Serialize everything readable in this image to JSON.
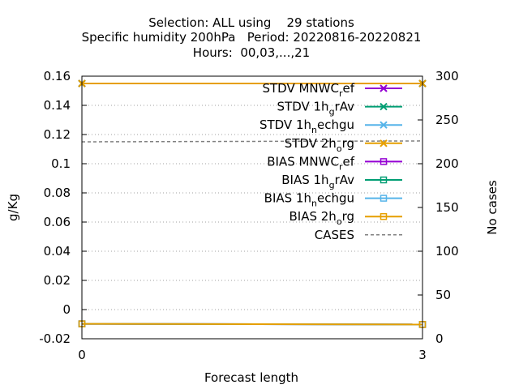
{
  "chart_data": {
    "type": "line",
    "title_lines": [
      "Selection: ALL using    29 stations",
      "Specific humidity 200hPa   Period: 20220816-20220821",
      "Hours:  00,03,...,21"
    ],
    "xlabel": "Forecast length",
    "ylabel": "g/Kg",
    "y2label": "No cases",
    "x": [
      0,
      3
    ],
    "xticks": [
      0,
      3
    ],
    "xlim": [
      0,
      3
    ],
    "ylim": [
      -0.02,
      0.16
    ],
    "yticks": [
      -0.02,
      0,
      0.02,
      0.04,
      0.06,
      0.08,
      0.1,
      0.12,
      0.14,
      0.16
    ],
    "ytick_labels": [
      "-0.02",
      "0",
      "0.02",
      "0.04",
      "0.06",
      "0.08",
      "0.1",
      "0.12",
      "0.14",
      "0.16"
    ],
    "y2lim": [
      0,
      300
    ],
    "y2ticks": [
      0,
      50,
      100,
      150,
      200,
      250,
      300
    ],
    "grid": true,
    "legend_position": "top-right",
    "series": [
      {
        "name": "STDV MNWC",
        "sub": "r",
        "suffix": "ef",
        "values": [
          0.155,
          0.155
        ],
        "color": "#9400d3",
        "marker": "x",
        "axis": "y"
      },
      {
        "name": "STDV 1h",
        "sub": "g",
        "suffix": "rAv",
        "values": [
          0.155,
          0.155
        ],
        "color": "#009e73",
        "marker": "x",
        "axis": "y"
      },
      {
        "name": "STDV 1h",
        "sub": "n",
        "suffix": "echgu",
        "values": [
          0.155,
          0.155
        ],
        "color": "#56b4e9",
        "marker": "x",
        "axis": "y"
      },
      {
        "name": "STDV 2h",
        "sub": "o",
        "suffix": "rg",
        "values": [
          0.155,
          0.155
        ],
        "color": "#e69f00",
        "marker": "x",
        "axis": "y"
      },
      {
        "name": "BIAS MNWC",
        "sub": "r",
        "suffix": "ef",
        "values": [
          -0.0098,
          -0.0102
        ],
        "color": "#9400d3",
        "marker": "square",
        "axis": "y"
      },
      {
        "name": "BIAS 1h",
        "sub": "g",
        "suffix": "rAv",
        "values": [
          -0.0098,
          -0.0102
        ],
        "color": "#009e73",
        "marker": "square",
        "axis": "y"
      },
      {
        "name": "BIAS 1h",
        "sub": "n",
        "suffix": "echgu",
        "values": [
          -0.0098,
          -0.0102
        ],
        "color": "#56b4e9",
        "marker": "square",
        "axis": "y"
      },
      {
        "name": "BIAS 2h",
        "sub": "o",
        "suffix": "rg",
        "values": [
          -0.0098,
          -0.0102
        ],
        "color": "#e69f00",
        "marker": "square",
        "axis": "y"
      },
      {
        "name": "CASES",
        "sub": "",
        "suffix": "",
        "values": [
          225,
          226
        ],
        "color": "#808080",
        "marker": "none",
        "dashed": true,
        "axis": "y2"
      }
    ]
  }
}
